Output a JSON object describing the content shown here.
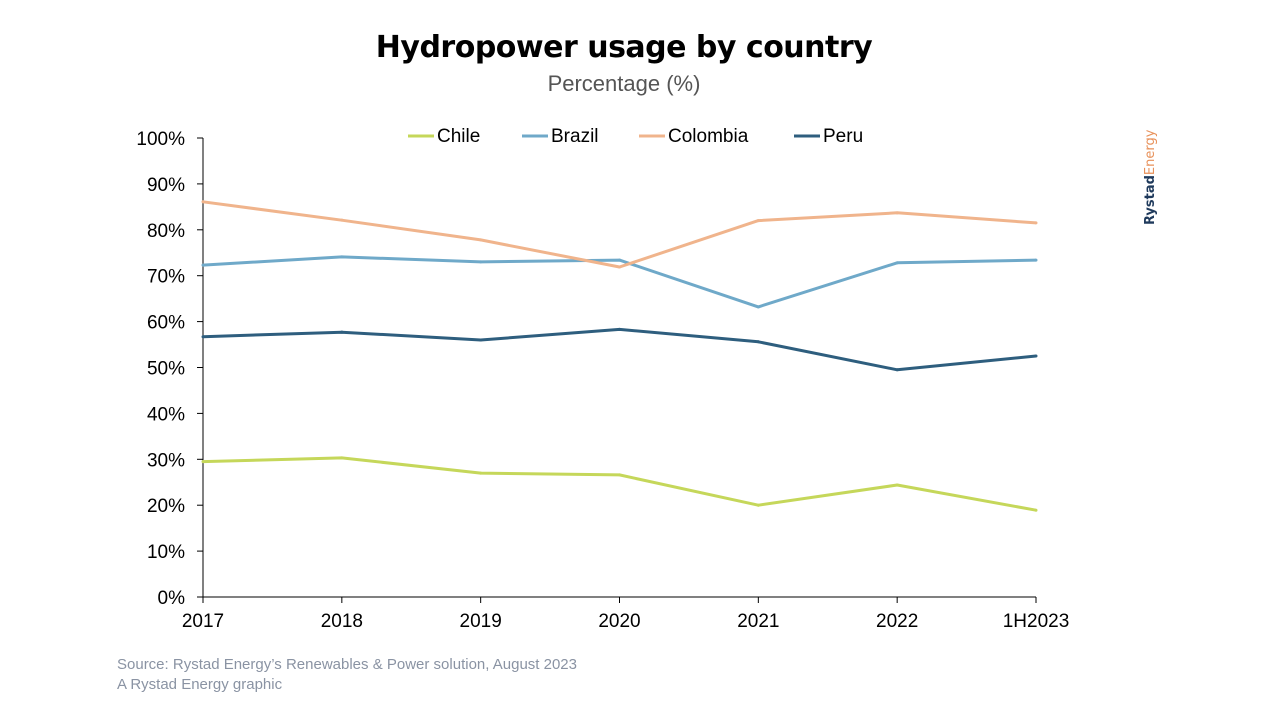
{
  "chart_data": {
    "type": "line",
    "title": "Hydropower usage by country",
    "subtitle": "Percentage (%)",
    "categories": [
      "2017",
      "2018",
      "2019",
      "2020",
      "2021",
      "2022",
      "1H2023"
    ],
    "y_ticks": [
      "0%",
      "10%",
      "20%",
      "30%",
      "40%",
      "50%",
      "60%",
      "70%",
      "80%",
      "90%",
      "100%"
    ],
    "ylim": [
      0,
      100
    ],
    "grid": false,
    "legend_position": "top",
    "series": [
      {
        "name": "Chile",
        "color": "#c5d75a",
        "values": [
          29.5,
          30.3,
          27.0,
          26.6,
          20.0,
          24.4,
          18.9
        ]
      },
      {
        "name": "Brazil",
        "color": "#6fa9c9",
        "values": [
          72.3,
          74.1,
          73.0,
          73.4,
          63.2,
          72.8,
          73.4
        ]
      },
      {
        "name": "Colombia",
        "color": "#f0b48c",
        "values": [
          86.1,
          82.1,
          77.8,
          71.9,
          82.0,
          83.7,
          81.5
        ]
      },
      {
        "name": "Peru",
        "color": "#2e5e7e",
        "values": [
          56.7,
          57.7,
          56.0,
          58.3,
          55.6,
          49.5,
          52.5
        ]
      }
    ]
  },
  "brand": {
    "part1": "Rystad",
    "part2": "Energy"
  },
  "source": {
    "line1": "Source: Rystad Energy’s Renewables & Power solution, August 2023",
    "line2": "A Rystad Energy graphic"
  }
}
